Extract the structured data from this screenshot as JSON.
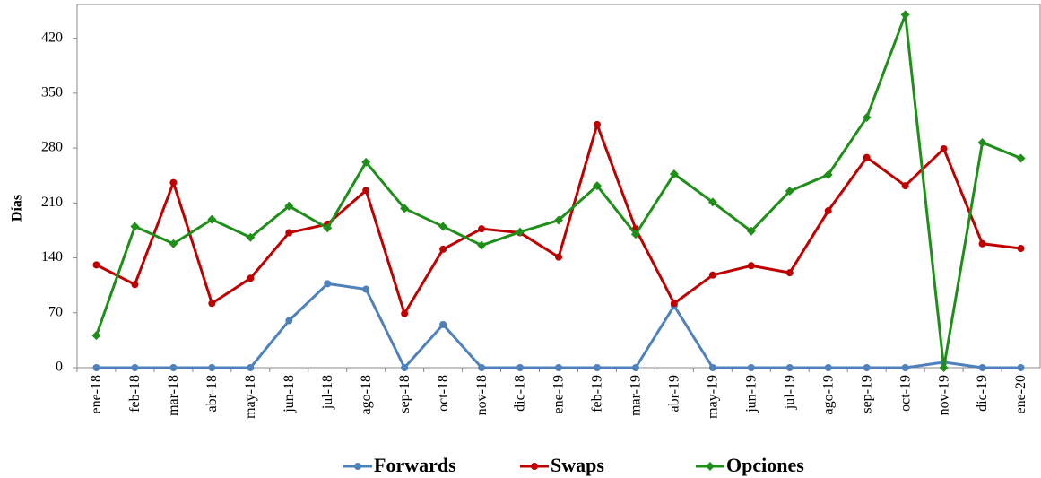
{
  "chart_data": {
    "type": "line",
    "y_label": "Días",
    "categories": [
      "ene-18",
      "feb-18",
      "mar-18",
      "abr-18",
      "may-18",
      "jun-18",
      "jul-18",
      "ago-18",
      "sep-18",
      "oct-18",
      "nov-18",
      "dic-18",
      "ene-19",
      "feb-19",
      "mar-19",
      "abr-19",
      "may-19",
      "jun-19",
      "jul-19",
      "ago-19",
      "sep-19",
      "oct-19",
      "nov-19",
      "dic-19",
      "ene-20"
    ],
    "series": [
      {
        "name": "Forwards",
        "color": "#4f81bd",
        "marker": "circle",
        "values": [
          0,
          0,
          0,
          0,
          0,
          60,
          107,
          100,
          0,
          55,
          0,
          0,
          0,
          0,
          0,
          79,
          0,
          0,
          0,
          0,
          0,
          0,
          7,
          0,
          0
        ]
      },
      {
        "name": "Swaps",
        "color": "#c00000",
        "marker": "circle",
        "values": [
          131,
          106,
          236,
          82,
          114,
          172,
          183,
          226,
          69,
          151,
          177,
          172,
          141,
          310,
          177,
          82,
          118,
          130,
          121,
          200,
          268,
          232,
          279,
          158,
          152
        ]
      },
      {
        "name": "Opciones",
        "color": "#1f8f1a",
        "marker": "diamond",
        "values": [
          41,
          180,
          158,
          189,
          166,
          206,
          178,
          262,
          203,
          180,
          156,
          173,
          188,
          232,
          170,
          247,
          211,
          174,
          225,
          246,
          319,
          450,
          0,
          287,
          267
        ]
      }
    ],
    "ylim": [
      0,
      463
    ],
    "yticks": [
      0,
      70,
      140,
      210,
      280,
      350,
      420
    ],
    "legend": "bottom"
  }
}
